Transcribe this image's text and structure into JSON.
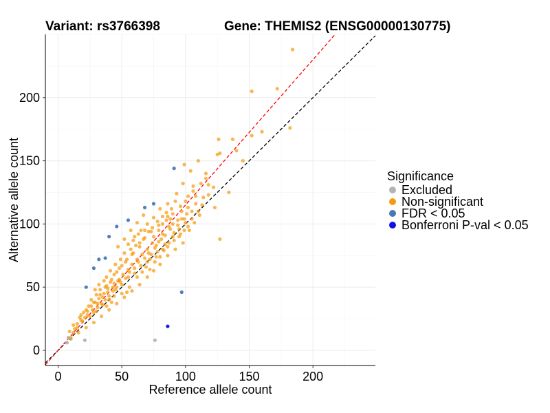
{
  "titles": {
    "left": "Variant: rs3766398",
    "right": "Gene: THEMIS2 (ENSG00000130775)"
  },
  "legend": {
    "title": "Significance",
    "items": [
      {
        "label": "Excluded",
        "color": "#b3b3b3"
      },
      {
        "label": "Non-significant",
        "color": "#f59b0f"
      },
      {
        "label": "FDR < 0.05",
        "color": "#4a78b4"
      },
      {
        "label": "Bonferroni P-val < 0.05",
        "color": "#1010e6"
      }
    ]
  },
  "chart_data": {
    "type": "scatter",
    "xlabel": "Reference allele count",
    "ylabel": "Alternative allele count",
    "xlim": [
      -10,
      249
    ],
    "ylim": [
      -12,
      250
    ],
    "xticks": [
      0,
      50,
      100,
      150,
      200
    ],
    "yticks": [
      0,
      50,
      100,
      150,
      200
    ],
    "grid": true,
    "legend_position": "right",
    "reference_lines": [
      {
        "style": "dashed",
        "color": "#000000",
        "slope": 1.0,
        "intercept": 0
      },
      {
        "style": "dashed",
        "color": "#ff0000",
        "slope": 1.15,
        "intercept": 0
      }
    ],
    "series": [
      {
        "name": "Excluded",
        "color": "#b3b3b3",
        "points": [
          [
            7,
            6
          ],
          [
            8,
            10
          ],
          [
            10,
            9
          ],
          [
            21,
            8
          ],
          [
            76,
            8
          ]
        ]
      },
      {
        "name": "Non-significant",
        "color": "#f59b0f",
        "points": [
          [
            184,
            238
          ],
          [
            152,
            205
          ],
          [
            172,
            207
          ],
          [
            182,
            176
          ],
          [
            160,
            173
          ],
          [
            152,
            170
          ],
          [
            137,
            167
          ],
          [
            126,
            167
          ],
          [
            127,
            156
          ],
          [
            140,
            158
          ],
          [
            145,
            150
          ],
          [
            125,
            155
          ],
          [
            110,
            150
          ],
          [
            116,
            140
          ],
          [
            116,
            136
          ],
          [
            104,
            142
          ],
          [
            99,
            147
          ],
          [
            122,
            129
          ],
          [
            118,
            123
          ],
          [
            123,
            113
          ],
          [
            127,
            88
          ],
          [
            134,
            125
          ],
          [
            106,
            130
          ],
          [
            102,
            113
          ],
          [
            97,
            110
          ],
          [
            88,
            104
          ],
          [
            82,
            92
          ],
          [
            74,
            85
          ],
          [
            70,
            80
          ],
          [
            66,
            76
          ],
          [
            62,
            72
          ],
          [
            58,
            68
          ],
          [
            55,
            64
          ],
          [
            51,
            60
          ],
          [
            47,
            55
          ],
          [
            43,
            50
          ],
          [
            39,
            46
          ],
          [
            35,
            42
          ],
          [
            31,
            37
          ],
          [
            27,
            32
          ],
          [
            23,
            28
          ],
          [
            19,
            23
          ],
          [
            15,
            18
          ],
          [
            12,
            14
          ],
          [
            10,
            10
          ],
          [
            9,
            15
          ],
          [
            12,
            20
          ],
          [
            17,
            26
          ],
          [
            22,
            32
          ],
          [
            28,
            38
          ],
          [
            33,
            44
          ],
          [
            38,
            51
          ],
          [
            42,
            56
          ],
          [
            46,
            62
          ],
          [
            50,
            67
          ],
          [
            54,
            72
          ],
          [
            59,
            77
          ],
          [
            64,
            82
          ],
          [
            68,
            89
          ],
          [
            73,
            94
          ],
          [
            79,
            99
          ],
          [
            85,
            103
          ],
          [
            90,
            108
          ],
          [
            96,
            114
          ],
          [
            100,
            118
          ],
          [
            108,
            122
          ],
          [
            110,
            110
          ],
          [
            103,
            95
          ],
          [
            98,
            85
          ],
          [
            92,
            80
          ],
          [
            86,
            75
          ],
          [
            80,
            68
          ],
          [
            75,
            63
          ],
          [
            70,
            58
          ],
          [
            64,
            52
          ],
          [
            58,
            47
          ],
          [
            52,
            42
          ],
          [
            46,
            37
          ],
          [
            40,
            32
          ],
          [
            34,
            27
          ],
          [
            28,
            22
          ],
          [
            22,
            18
          ],
          [
            16,
            14
          ],
          [
            47,
            82
          ],
          [
            52,
            88
          ],
          [
            57,
            95
          ],
          [
            62,
            101
          ],
          [
            67,
            107
          ],
          [
            60,
            61
          ],
          [
            65,
            67
          ],
          [
            55,
            58
          ],
          [
            50,
            52
          ],
          [
            45,
            48
          ],
          [
            40,
            40
          ],
          [
            35,
            36
          ],
          [
            30,
            31
          ],
          [
            72,
            72
          ],
          [
            78,
            78
          ],
          [
            84,
            84
          ],
          [
            90,
            90
          ],
          [
            95,
            96
          ],
          [
            100,
            101
          ],
          [
            105,
            104
          ],
          [
            60,
            90
          ],
          [
            58,
            76
          ],
          [
            53,
            70
          ],
          [
            48,
            65
          ],
          [
            44,
            60
          ],
          [
            41,
            54
          ],
          [
            37,
            50
          ],
          [
            33,
            48
          ],
          [
            30,
            44
          ],
          [
            26,
            40
          ],
          [
            24,
            35
          ],
          [
            20,
            30
          ],
          [
            18,
            28
          ],
          [
            65,
            95
          ],
          [
            70,
            100
          ],
          [
            75,
            105
          ],
          [
            80,
            112
          ],
          [
            86,
            116
          ],
          [
            93,
            124
          ],
          [
            98,
            132
          ],
          [
            70,
            70
          ],
          [
            73,
            76
          ],
          [
            77,
            83
          ],
          [
            81,
            88
          ],
          [
            83,
            79
          ],
          [
            87,
            85
          ],
          [
            91,
            93
          ],
          [
            94,
            99
          ],
          [
            96,
            92
          ],
          [
            99,
            104
          ],
          [
            88,
            96
          ],
          [
            84,
            91
          ],
          [
            79,
            86
          ],
          [
            76,
            81
          ],
          [
            71,
            77
          ],
          [
            68,
            73
          ],
          [
            63,
            70
          ],
          [
            60,
            65
          ],
          [
            56,
            62
          ],
          [
            53,
            57
          ],
          [
            49,
            54
          ],
          [
            46,
            50
          ],
          [
            43,
            47
          ],
          [
            40,
            43
          ],
          [
            37,
            40
          ],
          [
            34,
            37
          ],
          [
            31,
            34
          ],
          [
            28,
            30
          ],
          [
            25,
            27
          ],
          [
            62,
            58
          ],
          [
            66,
            62
          ],
          [
            69,
            66
          ],
          [
            72,
            64
          ],
          [
            76,
            70
          ],
          [
            80,
            74
          ],
          [
            56,
            50
          ],
          [
            54,
            46
          ],
          [
            50,
            45
          ],
          [
            44,
            43
          ],
          [
            42,
            38
          ],
          [
            38,
            35
          ],
          [
            67,
            88
          ],
          [
            64,
            85
          ],
          [
            61,
            83
          ],
          [
            57,
            80
          ],
          [
            52,
            77
          ],
          [
            49,
            72
          ],
          [
            45,
            68
          ],
          [
            41,
            63
          ],
          [
            38,
            58
          ],
          [
            36,
            55
          ],
          [
            32,
            52
          ],
          [
            29,
            48
          ],
          [
            92,
            118
          ],
          [
            89,
            112
          ],
          [
            85,
            109
          ],
          [
            82,
            106
          ],
          [
            78,
            102
          ],
          [
            74,
            97
          ],
          [
            71,
            94
          ],
          [
            102,
            122
          ],
          [
            106,
            126
          ],
          [
            112,
            132
          ],
          [
            114,
            121
          ],
          [
            118,
            131
          ],
          [
            108,
            116
          ],
          [
            105,
            110
          ],
          [
            101,
            108
          ],
          [
            97,
            104
          ],
          [
            94,
            103
          ],
          [
            90,
            100
          ],
          [
            87,
            98
          ],
          [
            68,
            95
          ],
          [
            63,
            92
          ],
          [
            59,
            87
          ],
          [
            55,
            84
          ],
          [
            75,
            90
          ],
          [
            79,
            95
          ],
          [
            82,
            100
          ],
          [
            86,
            106
          ],
          [
            77,
            74
          ],
          [
            82,
            80
          ],
          [
            86,
            82
          ],
          [
            91,
            87
          ],
          [
            95,
            90
          ],
          [
            99,
            95
          ],
          [
            102,
            98
          ],
          [
            107,
            101
          ],
          [
            111,
            107
          ],
          [
            113,
            115
          ],
          [
            48,
            56
          ],
          [
            44,
            53
          ],
          [
            39,
            49
          ],
          [
            36,
            45
          ],
          [
            32,
            41
          ],
          [
            29,
            38
          ],
          [
            26,
            35
          ],
          [
            23,
            31
          ],
          [
            21,
            26
          ],
          [
            18,
            24
          ],
          [
            15,
            21
          ],
          [
            13,
            17
          ]
        ]
      },
      {
        "name": "FDR < 0.05",
        "color": "#4a78b4",
        "points": [
          [
            91,
            144
          ],
          [
            75,
            116
          ],
          [
            68,
            113
          ],
          [
            55,
            103
          ],
          [
            46,
            98
          ],
          [
            40,
            90
          ],
          [
            32,
            72
          ],
          [
            28,
            65
          ],
          [
            37,
            73
          ],
          [
            22,
            50
          ],
          [
            97,
            46
          ]
        ]
      },
      {
        "name": "Bonferroni P-val < 0.05",
        "color": "#1010e6",
        "points": [
          [
            86,
            19
          ]
        ]
      }
    ]
  }
}
